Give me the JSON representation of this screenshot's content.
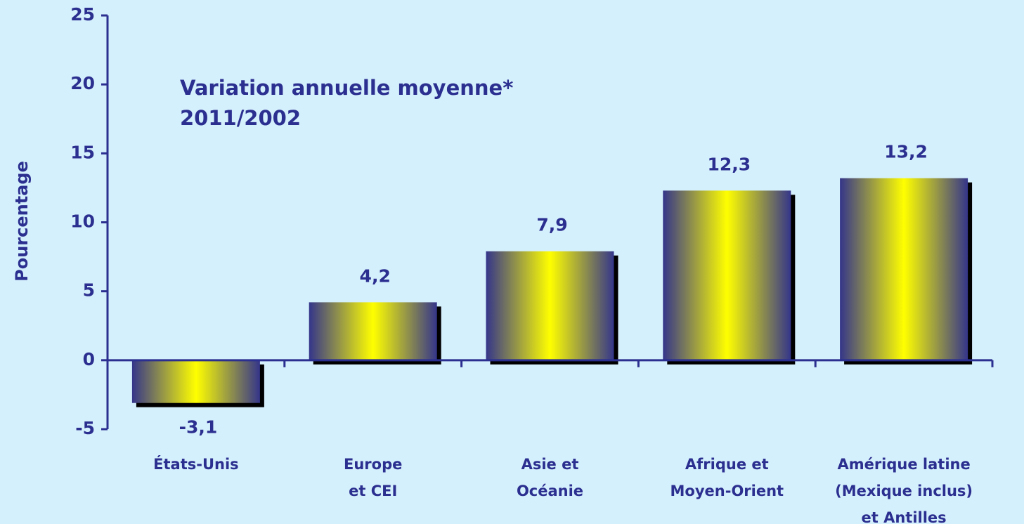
{
  "chart_data": {
    "type": "bar",
    "title": [
      "Variation annuelle moyenne*",
      "2011/2002"
    ],
    "y_label": "Pourcentage",
    "categories": [
      [
        "États-Unis"
      ],
      [
        "Europe",
        "et CEI"
      ],
      [
        "Asie et",
        "Océanie"
      ],
      [
        "Afrique et",
        "Moyen-Orient"
      ],
      [
        "Amérique latine",
        "(Mexique inclus)",
        "et Antilles"
      ]
    ],
    "values": [
      -3.1,
      4.2,
      7.9,
      12.3,
      13.2
    ],
    "value_labels": [
      "-3,1",
      "4,2",
      "7,9",
      "12,3",
      "13,2"
    ],
    "gradient": [
      "#34358a",
      "#ffff00"
    ],
    "ylim": [
      -5,
      25
    ],
    "yticks": [
      -5,
      0,
      5,
      10,
      15,
      20,
      25
    ]
  }
}
